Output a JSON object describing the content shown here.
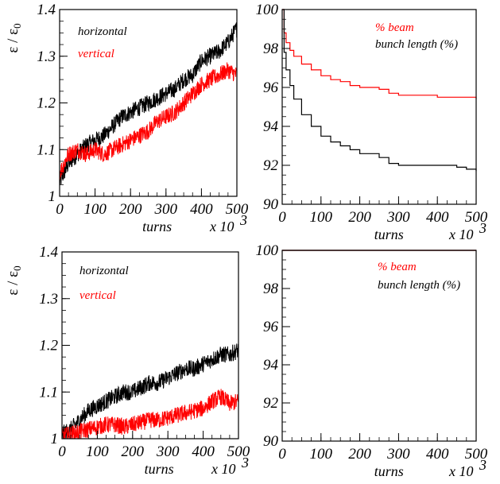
{
  "chart_data": [
    {
      "id": "top-left",
      "type": "line",
      "ylabel": "ε / ε0",
      "ylabel_main": "ε / ε",
      "ylabel_sub": "0",
      "xlabel": "turns",
      "x_multiplier": "x 10",
      "x_multiplier_exp": "3",
      "xlim": [
        0,
        500
      ],
      "ylim": [
        1.0,
        1.4
      ],
      "yticks": [
        "1",
        "1.1",
        "1.2",
        "1.3",
        "1.4"
      ],
      "xticks": [
        "0",
        "100",
        "200",
        "300",
        "400",
        "500"
      ],
      "legend": [
        "horizontal",
        "vertical"
      ],
      "series": [
        {
          "name": "horizontal",
          "color": "#000000",
          "x": [
            0,
            25,
            50,
            75,
            100,
            125,
            150,
            175,
            200,
            225,
            250,
            275,
            300,
            325,
            350,
            375,
            400,
            425,
            450,
            475,
            500
          ],
          "y": [
            1.03,
            1.07,
            1.09,
            1.11,
            1.12,
            1.13,
            1.15,
            1.17,
            1.18,
            1.19,
            1.2,
            1.21,
            1.22,
            1.23,
            1.25,
            1.26,
            1.29,
            1.3,
            1.31,
            1.33,
            1.36
          ]
        },
        {
          "name": "vertical",
          "color": "#ff0000",
          "x": [
            0,
            25,
            50,
            75,
            100,
            125,
            150,
            175,
            200,
            225,
            250,
            275,
            300,
            325,
            350,
            375,
            400,
            425,
            450,
            475,
            500
          ],
          "y": [
            1.05,
            1.09,
            1.1,
            1.09,
            1.1,
            1.09,
            1.1,
            1.11,
            1.12,
            1.13,
            1.14,
            1.16,
            1.17,
            1.18,
            1.2,
            1.22,
            1.24,
            1.25,
            1.26,
            1.27,
            1.26
          ]
        }
      ]
    },
    {
      "id": "top-right",
      "type": "line",
      "xlabel": "turns",
      "x_multiplier": "x 10",
      "x_multiplier_exp": "3",
      "xlim": [
        0,
        500
      ],
      "ylim": [
        90,
        100
      ],
      "yticks": [
        "90",
        "92",
        "94",
        "96",
        "98",
        "100"
      ],
      "xticks": [
        "0",
        "100",
        "200",
        "300",
        "400",
        "500"
      ],
      "legend": [
        "% beam",
        "bunch length (%)"
      ],
      "series": [
        {
          "name": "% beam",
          "color": "#ff0000",
          "x": [
            0,
            5,
            10,
            20,
            30,
            50,
            75,
            100,
            125,
            150,
            175,
            200,
            250,
            275,
            300,
            350,
            400,
            450,
            500
          ],
          "y": [
            100,
            98.8,
            98.3,
            97.9,
            97.6,
            97.2,
            96.9,
            96.6,
            96.4,
            96.3,
            96.1,
            96.0,
            95.9,
            95.7,
            95.6,
            95.6,
            95.5,
            95.5,
            95.4
          ]
        },
        {
          "name": "bunch length (%)",
          "color": "#000000",
          "x": [
            0,
            5,
            10,
            20,
            30,
            50,
            75,
            100,
            125,
            150,
            175,
            200,
            250,
            275,
            300,
            350,
            400,
            450,
            475,
            500
          ],
          "y": [
            100,
            97.8,
            96.9,
            96.1,
            95.4,
            94.6,
            94.0,
            93.5,
            93.2,
            93.0,
            92.8,
            92.6,
            92.4,
            92.1,
            92.0,
            92.0,
            92.0,
            91.9,
            91.8,
            91.7
          ]
        }
      ],
      "step": true
    },
    {
      "id": "bottom-left",
      "type": "line",
      "ylabel": "ε / ε0",
      "ylabel_main": "ε / ε",
      "ylabel_sub": "0",
      "xlabel": "turns",
      "x_multiplier": "x 10",
      "x_multiplier_exp": "3",
      "xlim": [
        0,
        500
      ],
      "ylim": [
        1.0,
        1.4
      ],
      "yticks": [
        "1",
        "1.1",
        "1.2",
        "1.3",
        "1.4"
      ],
      "xticks": [
        "0",
        "100",
        "200",
        "300",
        "400",
        "500"
      ],
      "legend": [
        "horizontal",
        "vertical"
      ],
      "series": [
        {
          "name": "horizontal",
          "color": "#000000",
          "x": [
            0,
            25,
            50,
            75,
            100,
            125,
            150,
            175,
            200,
            225,
            250,
            275,
            300,
            325,
            350,
            375,
            400,
            425,
            450,
            475,
            500
          ],
          "y": [
            1.01,
            1.02,
            1.04,
            1.06,
            1.07,
            1.08,
            1.09,
            1.1,
            1.1,
            1.11,
            1.12,
            1.12,
            1.13,
            1.14,
            1.15,
            1.15,
            1.16,
            1.17,
            1.18,
            1.18,
            1.19
          ]
        },
        {
          "name": "vertical",
          "color": "#ff0000",
          "x": [
            0,
            25,
            50,
            75,
            100,
            125,
            150,
            175,
            200,
            225,
            250,
            275,
            300,
            325,
            350,
            375,
            400,
            425,
            450,
            475,
            500
          ],
          "y": [
            1.005,
            1.01,
            1.015,
            1.02,
            1.025,
            1.03,
            1.03,
            1.025,
            1.03,
            1.035,
            1.04,
            1.04,
            1.045,
            1.05,
            1.055,
            1.06,
            1.065,
            1.08,
            1.09,
            1.075,
            1.08
          ]
        }
      ]
    },
    {
      "id": "bottom-right",
      "type": "line",
      "xlabel": "turns",
      "x_multiplier": "x 10",
      "x_multiplier_exp": "3",
      "xlim": [
        0,
        500
      ],
      "ylim": [
        90,
        100
      ],
      "yticks": [
        "90",
        "92",
        "94",
        "96",
        "98",
        "100"
      ],
      "xticks": [
        "0",
        "100",
        "200",
        "300",
        "400",
        "500"
      ],
      "legend": [
        "% beam",
        "bunch length (%)"
      ],
      "series": [
        {
          "name": "% beam",
          "color": "#ff0000",
          "x": [
            0,
            500
          ],
          "y": [
            100,
            100
          ]
        },
        {
          "name": "bunch length (%)",
          "color": "#000000",
          "x": [
            0,
            500
          ],
          "y": [
            100,
            100
          ]
        }
      ]
    }
  ]
}
